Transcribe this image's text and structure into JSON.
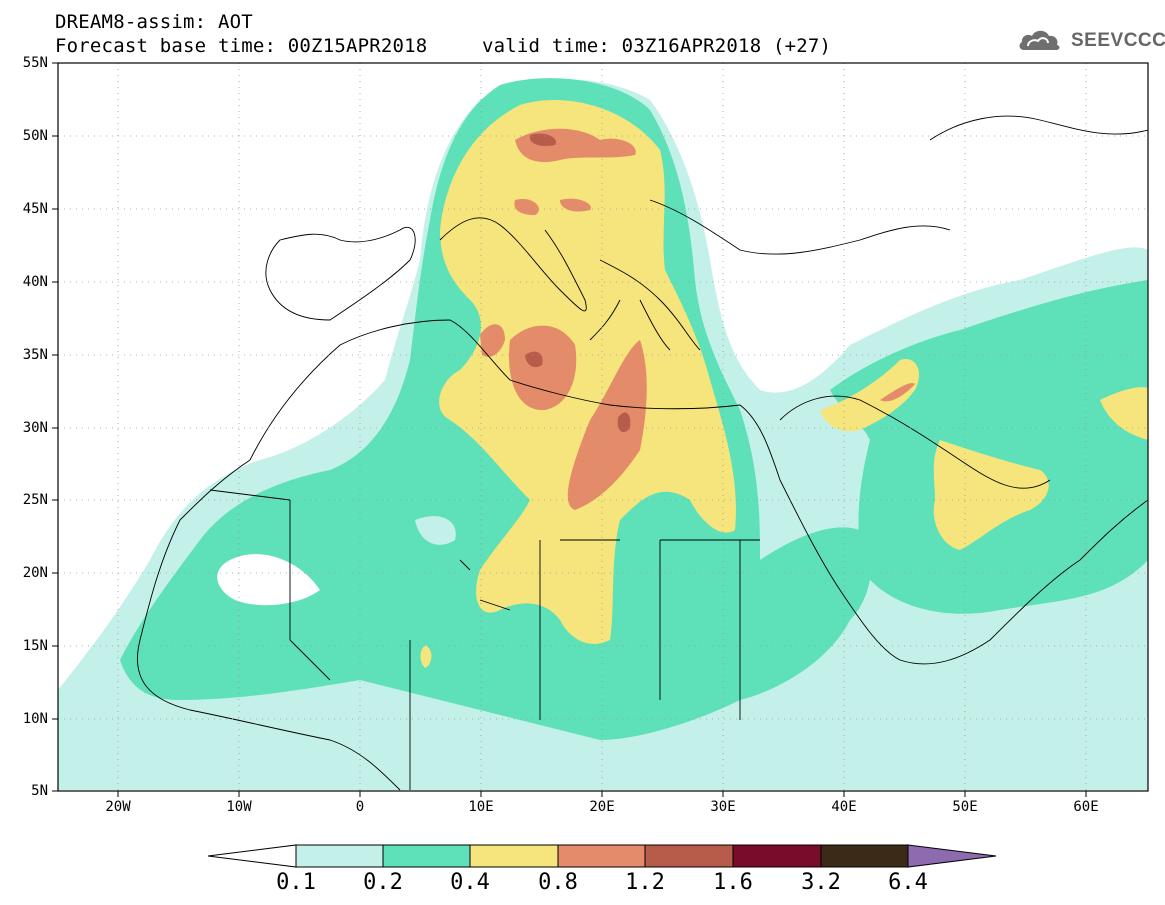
{
  "header": {
    "line1": "DREAM8-assim: AOT",
    "line2": "Forecast base time: 00Z15APR2018",
    "line3": "valid time: 03Z16APR2018 (+27)"
  },
  "logo": {
    "text": "SEEVCCC",
    "icon": "cloud-icon"
  },
  "map": {
    "lon_range": [
      -25,
      65
    ],
    "lat_range": [
      5,
      55
    ],
    "lat_labels": [
      "55N",
      "50N",
      "45N",
      "40N",
      "35N",
      "30N",
      "25N",
      "20N",
      "15N",
      "10N",
      "5N"
    ],
    "lon_labels": [
      "20W",
      "10W",
      "0",
      "10E",
      "20E",
      "30E",
      "40E",
      "50E",
      "60E"
    ],
    "field_colors": {
      "0.1-0.2": "#c3f0e9",
      "0.2-0.4": "#5ee0b8",
      "0.4-0.8": "#f5e57c",
      "0.8-1.2": "#e48b6a",
      "1.2-1.6": "#b75b4b",
      "1.6-3.2": "#7a0c2b",
      "3.2-6.4": "#3b2a18",
      ">6.4": "#8e6bae"
    }
  },
  "colorbar": {
    "labels": [
      "0.1",
      "0.2",
      "0.4",
      "0.8",
      "1.2",
      "1.6",
      "3.2",
      "6.4"
    ],
    "colors": [
      "#c3f0e9",
      "#5ee0b8",
      "#f5e57c",
      "#e48b6a",
      "#b75b4b",
      "#7a0c2b",
      "#3b2a18",
      "#8e6bae"
    ],
    "under_color": "#ffffff"
  }
}
